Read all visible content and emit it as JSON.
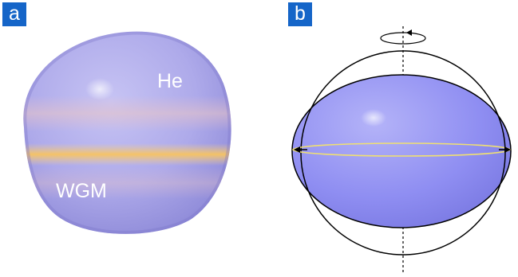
{
  "panels": {
    "a": {
      "label": "a",
      "texts": {
        "top": "He",
        "bottom": "WGM"
      }
    },
    "b": {
      "label": "b"
    }
  },
  "colors": {
    "label_bg": "#1565c8",
    "drop_body": "#a5a2ea",
    "drop_band": "#f5c36a",
    "ellipsoid_fill": "#8f8ef2",
    "equator_ring": "#f0e071",
    "outline": "#000000"
  },
  "icons": {
    "rotation": "rotation-arrow-icon"
  }
}
